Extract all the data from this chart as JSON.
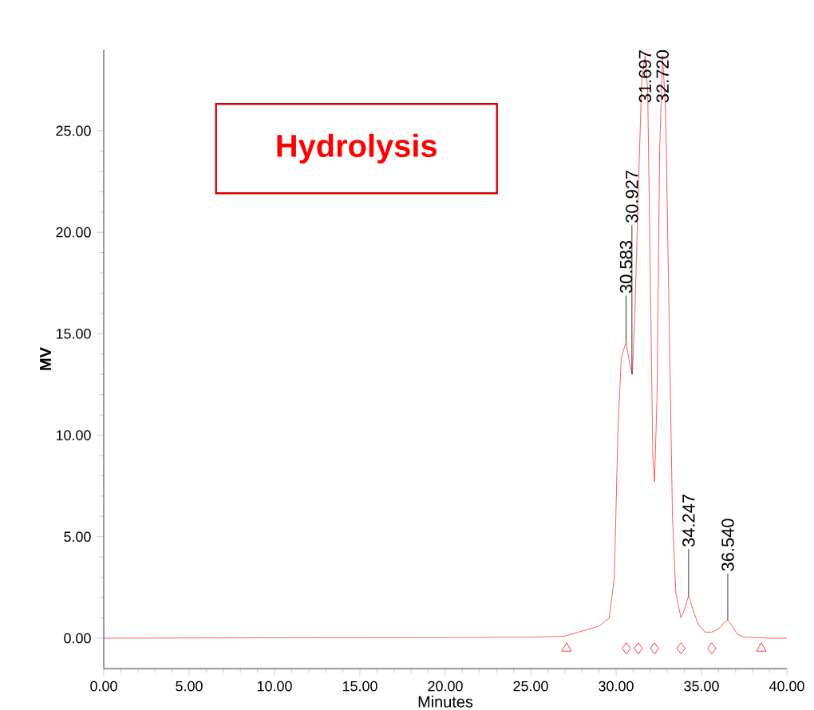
{
  "chart_data": {
    "type": "line",
    "title": "Hydrolysis",
    "xlabel": "Minutes",
    "ylabel": "MV",
    "xlim": [
      0,
      40
    ],
    "ylim": [
      -1.5,
      29
    ],
    "xticks": [
      {
        "value": 0,
        "label": "0.00"
      },
      {
        "value": 5,
        "label": "5.00"
      },
      {
        "value": 10,
        "label": "10.00"
      },
      {
        "value": 15,
        "label": "15.00"
      },
      {
        "value": 20,
        "label": "20.00"
      },
      {
        "value": 25,
        "label": "25.00"
      },
      {
        "value": 30,
        "label": "30.00"
      },
      {
        "value": 35,
        "label": "35.00"
      },
      {
        "value": 40,
        "label": "40.00"
      }
    ],
    "yticks": [
      {
        "value": 0,
        "label": "0.00"
      },
      {
        "value": 5,
        "label": "5.00"
      },
      {
        "value": 10,
        "label": "10.00"
      },
      {
        "value": 15,
        "label": "15.00"
      },
      {
        "value": 20,
        "label": "20.00"
      },
      {
        "value": 25,
        "label": "25.00"
      }
    ],
    "series": [
      {
        "color": "#ff3333",
        "marker": "none",
        "x": [
          0,
          10,
          20,
          25,
          27,
          29,
          29.6,
          29.9,
          30.1,
          30.3,
          30.583,
          30.8,
          30.95,
          31.1,
          31.3,
          31.5,
          31.697,
          31.85,
          32.0,
          32.15,
          32.25,
          32.4,
          32.55,
          32.72,
          32.9,
          33.1,
          33.3,
          33.5,
          33.8,
          34.0,
          34.247,
          34.5,
          34.8,
          35.2,
          35.6,
          36.0,
          36.3,
          36.54,
          36.8,
          37.1,
          37.5,
          39,
          40
        ],
        "values": [
          0,
          0.02,
          0.03,
          0.05,
          0.1,
          0.6,
          1.0,
          3,
          10,
          13.8,
          14.6,
          13.5,
          13.0,
          16,
          22,
          27.5,
          28.7,
          27,
          18,
          9,
          7.7,
          12,
          24,
          28.7,
          26,
          16,
          6,
          2.2,
          1.0,
          1.4,
          2.1,
          1.4,
          0.7,
          0.3,
          0.3,
          0.45,
          0.75,
          0.9,
          0.6,
          0.2,
          0.05,
          0,
          0
        ]
      },
      {
        "type": "scatter",
        "color": "#ff0000",
        "marker": "triangle",
        "x": [
          27.1,
          38.5
        ],
        "values": [
          -0.5,
          -0.5
        ]
      },
      {
        "type": "scatter",
        "color": "#ff0000",
        "marker": "diamond",
        "x": [
          30.6,
          31.3,
          32.25,
          33.8,
          35.6
        ],
        "values": [
          -0.5,
          -0.5,
          -0.5,
          -0.5,
          -0.5
        ]
      }
    ],
    "annotations": [
      {
        "text": "30.583",
        "x": 30.583,
        "y": 14.6
      },
      {
        "text": "30.927",
        "x": 30.927,
        "y": 13.0
      },
      {
        "text": "31.697",
        "x": 31.697,
        "y": 28.7
      },
      {
        "text": "32.720",
        "x": 32.72,
        "y": 28.7
      },
      {
        "text": "34.247",
        "x": 34.247,
        "y": 2.1
      },
      {
        "text": "36.540",
        "x": 36.54,
        "y": 0.9
      }
    ],
    "grid": false
  }
}
